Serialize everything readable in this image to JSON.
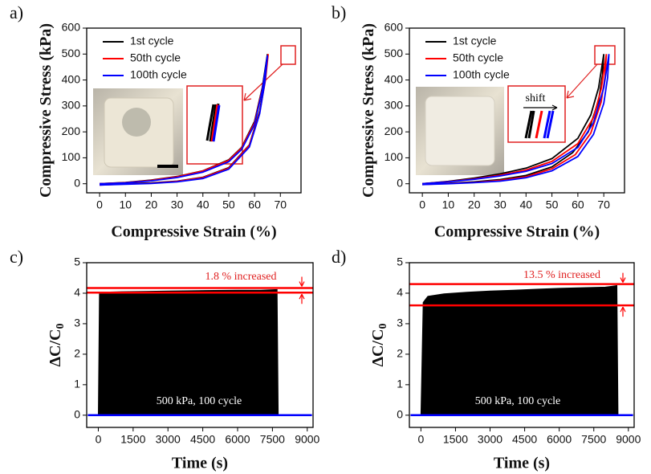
{
  "chart_data": [
    {
      "type": "line",
      "label": "a)",
      "xlabel": "Compressive Strain (%)",
      "ylabel": "Compressive Stress (kPa)",
      "xlim": [
        -5,
        78
      ],
      "ylim": [
        -35,
        600
      ],
      "xticks": [
        0,
        10,
        20,
        30,
        40,
        50,
        60,
        70
      ],
      "yticks": [
        0,
        100,
        200,
        300,
        400,
        500,
        600
      ],
      "series": [
        {
          "name": "1st cycle",
          "color": "#000000",
          "x": [
            0,
            10,
            20,
            30,
            40,
            50,
            55,
            60,
            63,
            65,
            64,
            62,
            58,
            50,
            40,
            30,
            20,
            10,
            0
          ],
          "values": [
            0,
            5,
            14,
            28,
            50,
            92,
            140,
            240,
            370,
            500,
            400,
            280,
            150,
            62,
            25,
            10,
            3,
            0,
            -4
          ]
        },
        {
          "name": "50th cycle",
          "color": "#ff0000",
          "x": [
            0,
            10,
            20,
            30,
            40,
            50,
            55,
            60,
            63,
            65.3,
            64.2,
            62,
            58,
            50,
            40,
            30,
            20,
            10,
            0
          ],
          "values": [
            0,
            4,
            13,
            27,
            49,
            90,
            138,
            235,
            365,
            500,
            398,
            275,
            148,
            60,
            24,
            9,
            2,
            -1,
            -5
          ]
        },
        {
          "name": "100th cycle",
          "color": "#0000ff",
          "x": [
            0,
            10,
            20,
            30,
            40,
            50,
            55,
            60,
            63,
            65,
            64,
            62,
            58,
            50,
            40,
            30,
            20,
            10,
            0
          ],
          "values": [
            0,
            3,
            11,
            24,
            45,
            85,
            132,
            228,
            360,
            495,
            392,
            270,
            142,
            56,
            20,
            7,
            1,
            -2,
            -5
          ]
        }
      ]
    },
    {
      "type": "line",
      "label": "b)",
      "xlabel": "Compressive Strain (%)",
      "ylabel": "Compressive Stress (kPa)",
      "xlim": [
        -5,
        78
      ],
      "ylim": [
        -35,
        600
      ],
      "xticks": [
        0,
        10,
        20,
        30,
        40,
        50,
        60,
        70
      ],
      "yticks": [
        0,
        100,
        200,
        300,
        400,
        500,
        600
      ],
      "annotations": [
        "shift"
      ],
      "series": [
        {
          "name": "1st cycle",
          "color": "#000000",
          "x": [
            0,
            10,
            20,
            30,
            40,
            50,
            60,
            65,
            68,
            70,
            69.5,
            68,
            64,
            58,
            50,
            40,
            30,
            20,
            10,
            0
          ],
          "values": [
            0,
            9,
            22,
            38,
            60,
            97,
            175,
            265,
            370,
            500,
            420,
            320,
            200,
            120,
            65,
            32,
            16,
            7,
            2,
            -2
          ]
        },
        {
          "name": "50th cycle",
          "color": "#ff0000",
          "x": [
            0,
            10,
            20,
            30,
            40,
            50,
            60,
            66,
            69,
            71,
            70.5,
            69,
            65,
            59,
            50,
            40,
            30,
            20,
            10,
            0
          ],
          "values": [
            0,
            8,
            19,
            33,
            53,
            86,
            155,
            255,
            365,
            500,
            415,
            315,
            195,
            112,
            58,
            27,
            13,
            5,
            1,
            -3
          ]
        },
        {
          "name": "100th cycle",
          "color": "#0000ff",
          "x": [
            0,
            10,
            20,
            30,
            40,
            50,
            60,
            66,
            70,
            72,
            71.5,
            70,
            66,
            60,
            50,
            40,
            30,
            20,
            10,
            0
          ],
          "values": [
            0,
            7,
            17,
            30,
            48,
            78,
            140,
            235,
            370,
            500,
            410,
            310,
            190,
            105,
            50,
            23,
            10,
            4,
            0,
            -3
          ]
        }
      ]
    },
    {
      "type": "area",
      "label": "c)",
      "xlabel": "Time (s)",
      "ylabel": "ΔC/C",
      "ylabel_sub": "0",
      "xlim": [
        -500,
        9250
      ],
      "ylim": [
        -0.4,
        5
      ],
      "xticks": [
        0,
        1500,
        3000,
        4500,
        6000,
        7500,
        9000
      ],
      "yticks": [
        0,
        1,
        2,
        3,
        4,
        5
      ],
      "annotations": [
        "1.8 % increased",
        "500 kPa, 100 cycle"
      ],
      "hlines": [
        4.02,
        4.17
      ],
      "hline_color": "#ff0000",
      "series": [
        {
          "color": "#000000",
          "x": [
            0,
            50,
            100,
            1000,
            2000,
            3000,
            4000,
            5000,
            6000,
            7000,
            7700,
            7750
          ],
          "values": [
            0,
            4.0,
            4.03,
            4.05,
            4.06,
            4.07,
            4.08,
            4.09,
            4.1,
            4.1,
            4.12,
            0
          ]
        },
        {
          "color": "#0000ff",
          "x": [
            -450,
            9200
          ],
          "values": [
            0,
            0
          ]
        }
      ]
    },
    {
      "type": "area",
      "label": "d)",
      "xlabel": "Time (s)",
      "ylabel": "ΔC/C",
      "ylabel_sub": "0",
      "xlim": [
        -500,
        9250
      ],
      "ylim": [
        -0.4,
        5
      ],
      "xticks": [
        0,
        1500,
        3000,
        4500,
        6000,
        7500,
        9000
      ],
      "yticks": [
        0,
        1,
        2,
        3,
        4,
        5
      ],
      "annotations": [
        "13.5 % increased",
        "500 kPa, 100 cycle"
      ],
      "hlines": [
        3.6,
        4.3
      ],
      "hline_color": "#ff0000",
      "series": [
        {
          "color": "#000000",
          "x": [
            0,
            100,
            300,
            1000,
            2000,
            3000,
            4000,
            5000,
            6000,
            7000,
            8000,
            8500,
            8550
          ],
          "values": [
            0,
            3.7,
            3.9,
            3.98,
            4.03,
            4.07,
            4.1,
            4.13,
            4.16,
            4.18,
            4.2,
            4.25,
            0
          ]
        },
        {
          "color": "#0000ff",
          "x": [
            -450,
            9200
          ],
          "values": [
            0,
            0
          ]
        }
      ]
    }
  ]
}
